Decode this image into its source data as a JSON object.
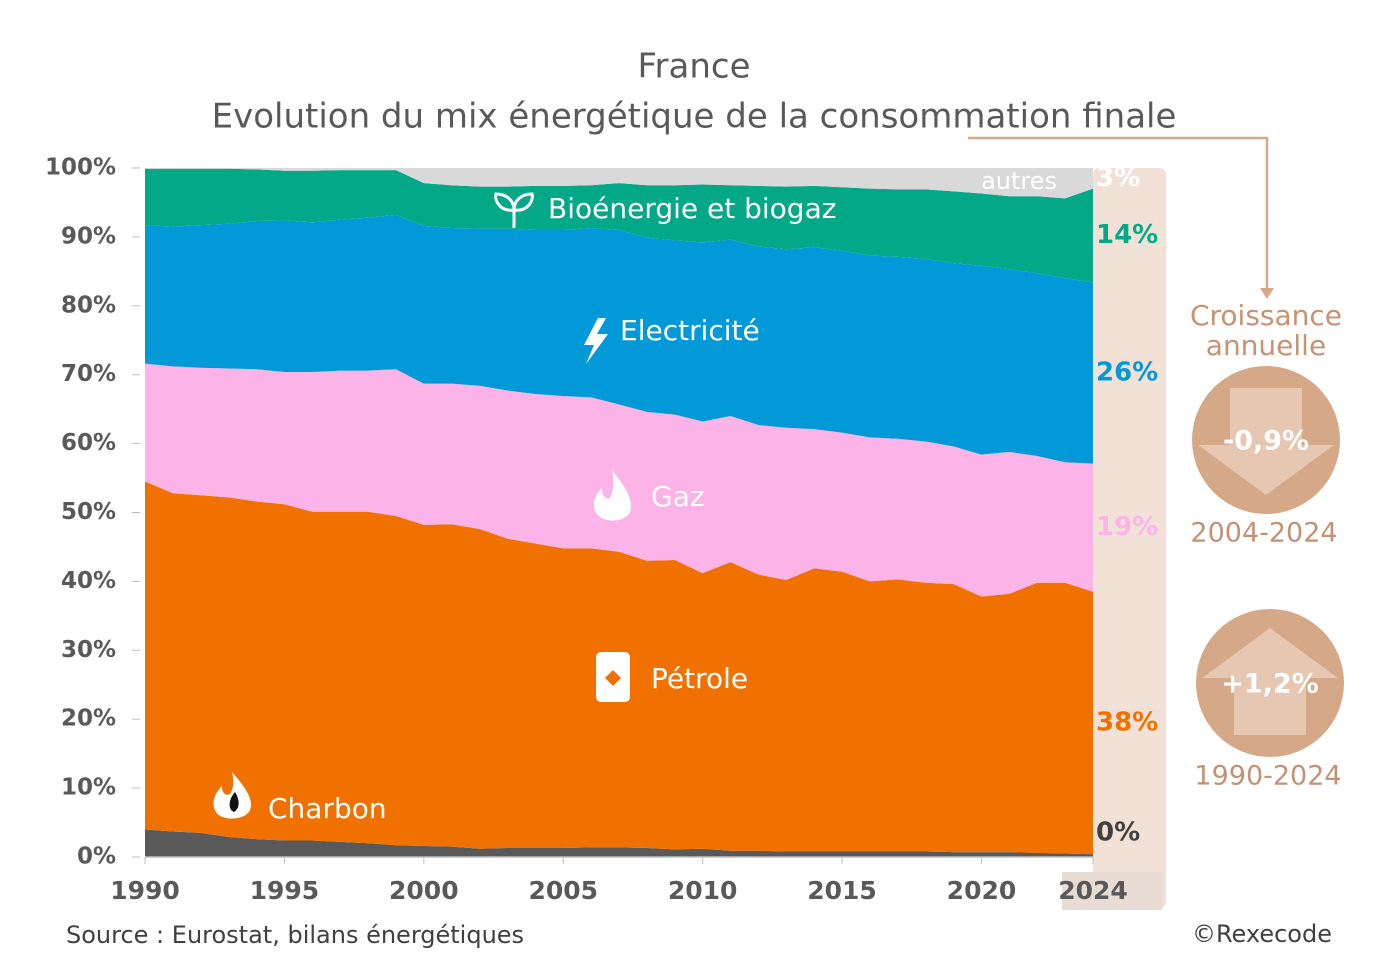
{
  "chart_data": {
    "type": "stacked_area",
    "title": "France",
    "subtitle": "Evolution du mix énergétique de la consommation finale",
    "x": [
      1990,
      1991,
      1992,
      1993,
      1994,
      1995,
      1996,
      1997,
      1998,
      1999,
      2000,
      2001,
      2002,
      2003,
      2004,
      2005,
      2006,
      2007,
      2008,
      2009,
      2010,
      2011,
      2012,
      2013,
      2014,
      2015,
      2016,
      2017,
      2018,
      2019,
      2020,
      2021,
      2022,
      2023,
      2024
    ],
    "xlim": [
      1990,
      2024
    ],
    "xticks": [
      1990,
      1995,
      2000,
      2005,
      2010,
      2015,
      2020,
      2024
    ],
    "ylim": [
      0,
      100
    ],
    "yticks": [
      {
        "value": 0,
        "label": "0%"
      },
      {
        "value": 10,
        "label": "10%"
      },
      {
        "value": 20,
        "label": "20%"
      },
      {
        "value": 30,
        "label": "30%"
      },
      {
        "value": 40,
        "label": "40%"
      },
      {
        "value": 50,
        "label": "50%"
      },
      {
        "value": 60,
        "label": "60%"
      },
      {
        "value": 70,
        "label": "70%"
      },
      {
        "value": 80,
        "label": "80%"
      },
      {
        "value": 90,
        "label": "90%"
      },
      {
        "value": 100,
        "label": "100%"
      }
    ],
    "series": [
      {
        "name": "Charbon",
        "color": "#595959",
        "end_label": "0%",
        "values": [
          4.0,
          3.7,
          3.5,
          2.9,
          2.6,
          2.4,
          2.4,
          2.2,
          2.0,
          1.7,
          1.6,
          1.5,
          1.2,
          1.3,
          1.3,
          1.3,
          1.4,
          1.4,
          1.3,
          1.1,
          1.2,
          0.9,
          0.9,
          0.8,
          0.8,
          0.8,
          0.8,
          0.8,
          0.8,
          0.7,
          0.7,
          0.7,
          0.6,
          0.5,
          0.4
        ]
      },
      {
        "name": "Pétrole",
        "color": "#f07000",
        "end_label": "38%",
        "values": [
          50.5,
          49.1,
          49.0,
          49.3,
          49.0,
          48.8,
          47.7,
          47.9,
          48.1,
          47.8,
          46.6,
          46.8,
          46.4,
          44.9,
          44.2,
          43.5,
          43.4,
          42.9,
          41.7,
          42.0,
          40.0,
          41.9,
          40.1,
          39.4,
          41.1,
          40.6,
          39.2,
          39.5,
          39.0,
          38.9,
          37.1,
          37.5,
          39.2,
          39.3,
          38.1
        ]
      },
      {
        "name": "Gaz",
        "color": "#fbb3e8",
        "end_label": "19%",
        "values": [
          17.1,
          18.4,
          18.5,
          18.7,
          19.2,
          19.2,
          20.3,
          20.5,
          20.5,
          21.3,
          20.5,
          20.4,
          20.8,
          21.5,
          21.7,
          22.1,
          21.9,
          21.4,
          21.6,
          21.1,
          22.0,
          21.2,
          21.7,
          22.1,
          20.2,
          20.2,
          20.9,
          20.4,
          20.5,
          20.0,
          20.6,
          20.6,
          18.4,
          17.5,
          18.6
        ]
      },
      {
        "name": "Electricité",
        "color": "#0299d8",
        "end_label": "26%",
        "values": [
          20.1,
          20.3,
          20.7,
          21.0,
          21.5,
          22.0,
          21.7,
          21.9,
          22.2,
          22.4,
          22.9,
          22.6,
          22.8,
          23.5,
          23.8,
          24.1,
          24.6,
          25.3,
          25.3,
          25.3,
          26.0,
          25.6,
          25.9,
          25.9,
          26.4,
          26.4,
          26.4,
          26.4,
          26.5,
          26.6,
          27.4,
          26.5,
          26.5,
          26.7,
          26.3
        ]
      },
      {
        "name": "Bioénergie et biogaz",
        "color": "#02a887",
        "end_label": "14%",
        "values": [
          8.2,
          8.4,
          8.2,
          8.0,
          7.5,
          7.2,
          7.5,
          7.2,
          6.9,
          6.5,
          6.2,
          6.2,
          6.1,
          6.1,
          6.4,
          6.4,
          6.2,
          6.8,
          7.6,
          8.0,
          8.4,
          7.9,
          8.8,
          9.1,
          8.9,
          9.2,
          9.7,
          9.8,
          10.1,
          10.4,
          10.5,
          10.6,
          11.2,
          11.6,
          13.6
        ]
      },
      {
        "name": "autres",
        "color": "#d9d9d9",
        "end_label": "3%",
        "values": [
          0.1,
          0.1,
          0.1,
          0.1,
          0.2,
          0.4,
          0.4,
          0.3,
          0.3,
          0.3,
          2.2,
          2.5,
          2.7,
          2.7,
          2.6,
          2.6,
          2.5,
          2.2,
          2.5,
          2.5,
          2.4,
          2.5,
          2.6,
          2.7,
          2.6,
          2.8,
          3.0,
          3.1,
          3.1,
          3.4,
          3.7,
          4.1,
          4.1,
          4.4,
          3.0
        ]
      }
    ],
    "growth": {
      "title": "Croissance annuelle",
      "items": [
        {
          "value": -0.9,
          "label": "-0,9%",
          "period": "2004-2024"
        },
        {
          "value": 1.2,
          "label": "+1,2%",
          "period": "1990-2024"
        }
      ]
    },
    "source": "Source : Eurostat, bilans énergétiques",
    "credit": "©Rexecode"
  }
}
